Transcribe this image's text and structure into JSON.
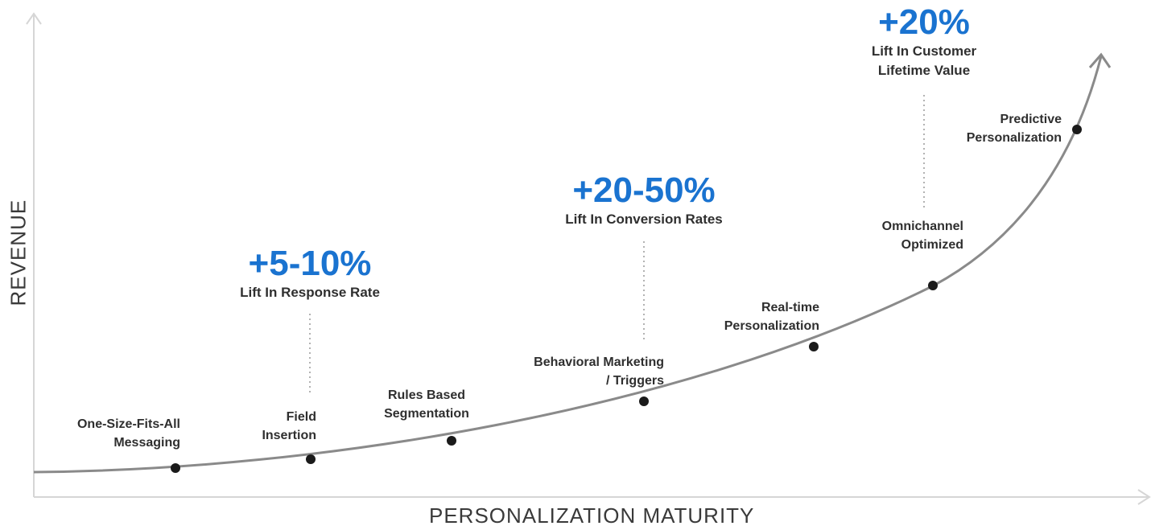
{
  "axes": {
    "y_title": "REVENUE",
    "x_title": "PERSONALIZATION MATURITY"
  },
  "stages": [
    {
      "lines": [
        "One-Size-Fits-All",
        "Messaging"
      ]
    },
    {
      "lines": [
        "Field",
        "Insertion"
      ]
    },
    {
      "lines": [
        "Rules Based",
        "Segmentation"
      ]
    },
    {
      "lines": [
        "Behavioral Marketing",
        "/ Triggers"
      ]
    },
    {
      "lines": [
        "Real-time",
        "Personalization"
      ]
    },
    {
      "lines": [
        "Omnichannel",
        "Optimized"
      ]
    },
    {
      "lines": [
        "Predictive",
        "Personalization"
      ]
    }
  ],
  "callouts": [
    {
      "value": "+5-10%",
      "label": [
        "Lift In Response Rate"
      ]
    },
    {
      "value": "+20-50%",
      "label": [
        "Lift In Conversion Rates"
      ]
    },
    {
      "value": "+20%",
      "label": [
        "Lift In Customer",
        "Lifetime Value"
      ]
    }
  ],
  "colors": {
    "accent": "#1a73d0",
    "curve": "#8a8a8a",
    "axis": "#d6d6d6",
    "dot": "#1a1a1a",
    "text": "#2f2f2f"
  }
}
